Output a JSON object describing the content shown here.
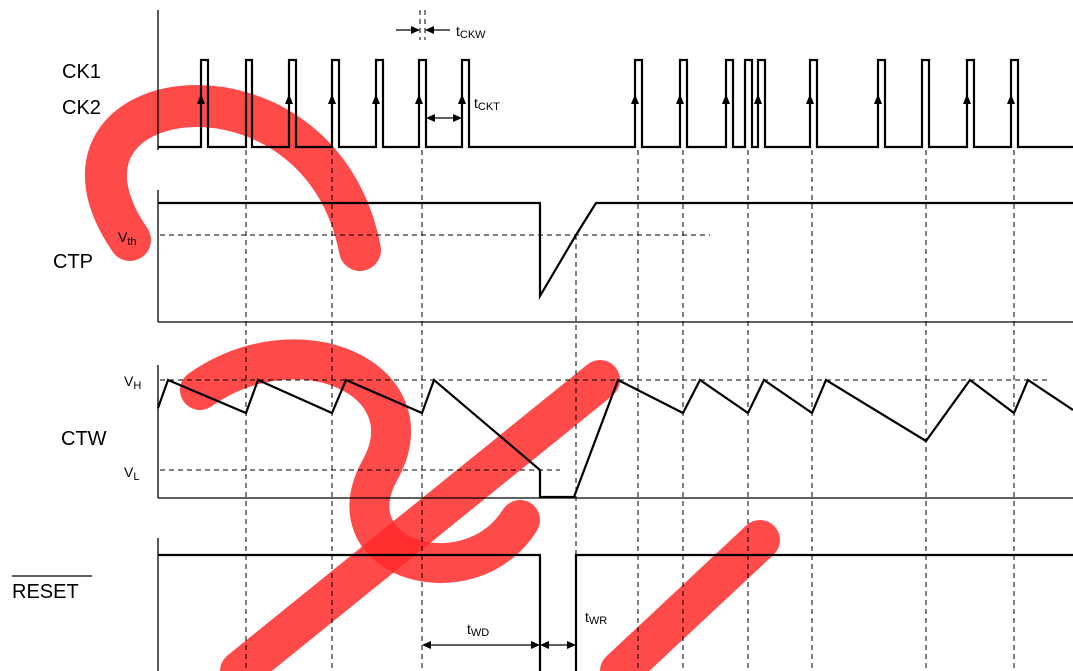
{
  "signals": {
    "ck1": "CK1",
    "ck2": "CK2",
    "ctp": "CTP",
    "ctw": "CTW",
    "reset": "RESET"
  },
  "levels": {
    "vth_main": "V",
    "vth_sub": "th",
    "vh_main": "V",
    "vh_sub": "H",
    "vl_main": "V",
    "vl_sub": "L"
  },
  "timings": {
    "tckw_main": "t",
    "tckw_sub": "CKW",
    "tckt_main": "t",
    "tckt_sub": "CKT",
    "twd_main": "t",
    "twd_sub": "WD",
    "twr_main": "t",
    "twr_sub": "WR"
  },
  "colors": {
    "line": "#000000",
    "watermark": "#ff2a2a"
  }
}
